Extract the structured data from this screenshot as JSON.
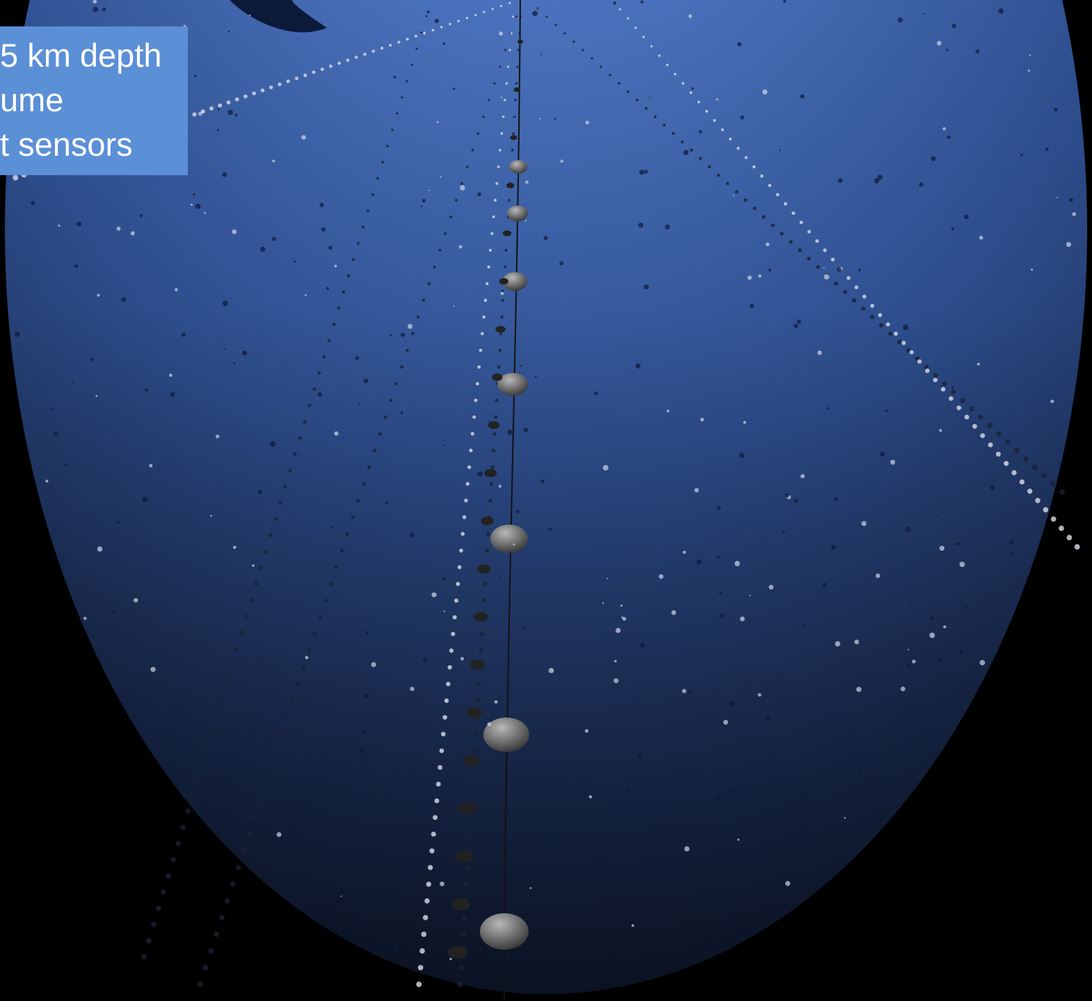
{
  "caption": {
    "lines": [
      "5 km depth",
      "ume",
      "t sensors"
    ]
  }
}
